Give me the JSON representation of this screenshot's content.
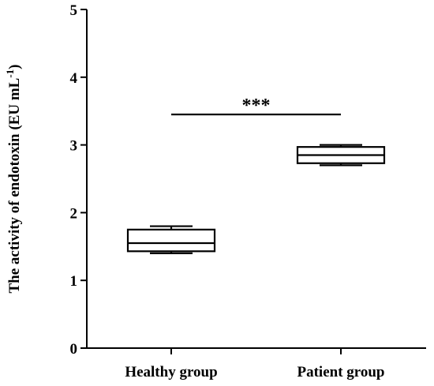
{
  "chart_data": {
    "type": "box",
    "ylabel_main": "The activity of endotoxin (EU mL",
    "ylabel_sup": "-1",
    "ylabel_close": ")",
    "ylim": [
      0,
      5
    ],
    "yticks": [
      "0",
      "1",
      "2",
      "3",
      "4",
      "5"
    ],
    "categories": [
      "Healthy group",
      "Patient group"
    ],
    "boxes": [
      {
        "min": 1.4,
        "q1": 1.43,
        "median": 1.55,
        "q3": 1.75,
        "max": 1.8
      },
      {
        "min": 2.7,
        "q1": 2.73,
        "median": 2.85,
        "q3": 2.97,
        "max": 3.0
      }
    ],
    "significance": {
      "label": "***",
      "y": 3.45,
      "from": 0,
      "to": 1
    },
    "grid": false,
    "legend": "none"
  }
}
